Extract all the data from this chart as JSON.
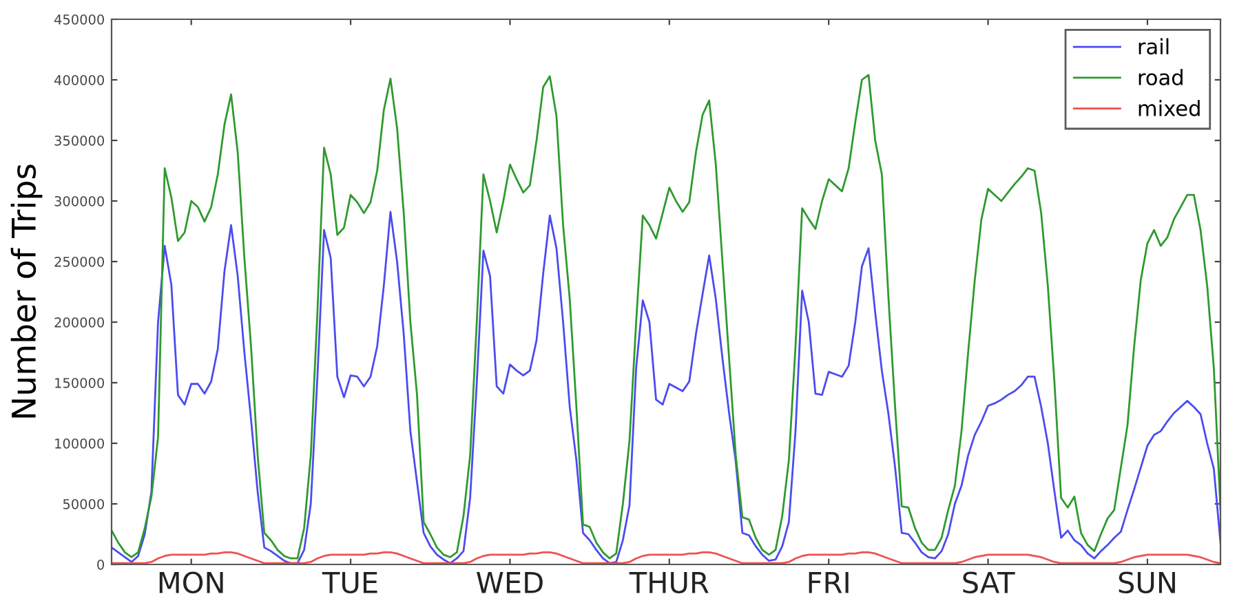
{
  "chart_data": {
    "type": "line",
    "ylabel": "Number of Trips",
    "ylim": [
      0,
      450000
    ],
    "categories": [
      null,
      null,
      null,
      null,
      null,
      null,
      null,
      null,
      null,
      null,
      null,
      null,
      "MON",
      null,
      null,
      null,
      null,
      null,
      null,
      null,
      null,
      null,
      null,
      null,
      null,
      null,
      null,
      null,
      null,
      null,
      null,
      null,
      null,
      null,
      null,
      null,
      "TUE",
      null,
      null,
      null,
      null,
      null,
      null,
      null,
      null,
      null,
      null,
      null,
      null,
      null,
      null,
      null,
      null,
      null,
      null,
      null,
      null,
      null,
      null,
      null,
      "WED",
      null,
      null,
      null,
      null,
      null,
      null,
      null,
      null,
      null,
      null,
      null,
      null,
      null,
      null,
      null,
      null,
      null,
      null,
      null,
      null,
      null,
      null,
      null,
      "THUR",
      null,
      null,
      null,
      null,
      null,
      null,
      null,
      null,
      null,
      null,
      null,
      null,
      null,
      null,
      null,
      null,
      null,
      null,
      null,
      null,
      null,
      null,
      null,
      "FRI",
      null,
      null,
      null,
      null,
      null,
      null,
      null,
      null,
      null,
      null,
      null,
      null,
      null,
      null,
      null,
      null,
      null,
      null,
      null,
      null,
      null,
      null,
      null,
      "SAT",
      null,
      null,
      null,
      null,
      null,
      null,
      null,
      null,
      null,
      null,
      null,
      null,
      null,
      null,
      null,
      null,
      null,
      null,
      null,
      null,
      null,
      null,
      null,
      "SUN",
      null,
      null,
      null,
      null,
      null,
      null,
      null,
      null,
      null,
      null,
      null
    ],
    "yticks": [
      0,
      50000,
      100000,
      150000,
      200000,
      250000,
      300000,
      350000,
      400000,
      450000
    ],
    "legend": "top right",
    "line_style": "solid",
    "series": [
      {
        "name": "rail",
        "color": "#4b4bf0",
        "values": [
          14000,
          10000,
          6000,
          2000,
          7000,
          25000,
          60000,
          200000,
          263000,
          231000,
          140000,
          132000,
          149000,
          149000,
          141000,
          151000,
          178000,
          242000,
          280000,
          238000,
          175000,
          120000,
          60000,
          14000,
          11000,
          7000,
          3000,
          1000,
          1000,
          12000,
          50000,
          155000,
          276000,
          253000,
          155000,
          138000,
          156000,
          155000,
          147000,
          155000,
          180000,
          230000,
          291000,
          250000,
          190000,
          110000,
          68000,
          26000,
          15000,
          8000,
          4000,
          1000,
          5000,
          11000,
          55000,
          150000,
          259000,
          238000,
          147000,
          141000,
          165000,
          160000,
          156000,
          160000,
          185000,
          240000,
          288000,
          261000,
          200000,
          130000,
          86000,
          26000,
          20000,
          12000,
          5000,
          1000,
          2000,
          20000,
          49000,
          162000,
          218000,
          200000,
          136000,
          132000,
          149000,
          146000,
          143000,
          151000,
          190000,
          223000,
          255000,
          219000,
          170000,
          125000,
          85000,
          26000,
          24000,
          15000,
          8000,
          3000,
          4000,
          15000,
          35000,
          110000,
          226000,
          200000,
          141000,
          140000,
          159000,
          157000,
          155000,
          164000,
          200000,
          246000,
          261000,
          208000,
          160000,
          124000,
          80000,
          26000,
          25000,
          18000,
          10000,
          6000,
          5000,
          11000,
          25000,
          50000,
          65000,
          90000,
          107000,
          118000,
          131000,
          133000,
          136000,
          140000,
          143000,
          148000,
          155000,
          155000,
          130000,
          100000,
          60000,
          22000,
          28000,
          20000,
          16000,
          9000,
          5000,
          11000,
          16000,
          22000,
          27000,
          45000,
          62000,
          80000,
          98000,
          107000,
          110000,
          118000,
          125000,
          130000,
          135000,
          130000,
          124000,
          100000,
          79000,
          18000
        ]
      },
      {
        "name": "road",
        "color": "#2e9a2e",
        "values": [
          28000,
          18000,
          10000,
          6000,
          10000,
          30000,
          56000,
          105000,
          327000,
          303000,
          267000,
          274000,
          300000,
          295000,
          283000,
          295000,
          322000,
          363000,
          388000,
          340000,
          253000,
          180000,
          90000,
          26000,
          20000,
          12000,
          7000,
          5000,
          5000,
          30000,
          90000,
          208000,
          344000,
          322000,
          272000,
          278000,
          305000,
          299000,
          290000,
          299000,
          325000,
          375000,
          401000,
          360000,
          290000,
          200000,
          140000,
          35000,
          25000,
          14000,
          8000,
          6000,
          10000,
          40000,
          90000,
          200000,
          322000,
          300000,
          274000,
          300000,
          330000,
          318000,
          307000,
          313000,
          350000,
          394000,
          403000,
          370000,
          280000,
          219000,
          130000,
          33000,
          31000,
          18000,
          10000,
          5000,
          9000,
          50000,
          102000,
          200000,
          288000,
          280000,
          269000,
          290000,
          311000,
          300000,
          291000,
          299000,
          340000,
          371000,
          383000,
          330000,
          250000,
          170000,
          90000,
          39000,
          37000,
          22000,
          12000,
          8000,
          12000,
          40000,
          86000,
          180000,
          294000,
          285000,
          277000,
          300000,
          318000,
          313000,
          308000,
          327000,
          365000,
          400000,
          404000,
          350000,
          322000,
          220000,
          130000,
          48000,
          47000,
          30000,
          18000,
          12000,
          12000,
          22000,
          45000,
          65000,
          110000,
          175000,
          235000,
          285000,
          310000,
          305000,
          300000,
          307000,
          314000,
          320000,
          327000,
          325000,
          290000,
          230000,
          150000,
          55000,
          47000,
          56000,
          26000,
          16000,
          11000,
          25000,
          38000,
          45000,
          80000,
          115000,
          180000,
          235000,
          265000,
          276000,
          263000,
          270000,
          285000,
          295000,
          305000,
          305000,
          276000,
          230000,
          162000,
          45000
        ]
      },
      {
        "name": "mixed",
        "color": "#f05050",
        "values": [
          1000,
          1000,
          1000,
          1000,
          1000,
          1000,
          2000,
          5000,
          7000,
          8000,
          8000,
          8000,
          8000,
          8000,
          8000,
          9000,
          9000,
          10000,
          10000,
          9000,
          7000,
          5000,
          3000,
          1000,
          1000,
          1000,
          1000,
          1000,
          1000,
          1000,
          2000,
          5000,
          7000,
          8000,
          8000,
          8000,
          8000,
          8000,
          8000,
          9000,
          9000,
          10000,
          10000,
          9000,
          7000,
          5000,
          3000,
          1000,
          1000,
          1000,
          1000,
          1000,
          1000,
          1000,
          2000,
          5000,
          7000,
          8000,
          8000,
          8000,
          8000,
          8000,
          8000,
          9000,
          9000,
          10000,
          10000,
          9000,
          7000,
          5000,
          3000,
          1000,
          1000,
          1000,
          1000,
          1000,
          1000,
          1000,
          2000,
          5000,
          7000,
          8000,
          8000,
          8000,
          8000,
          8000,
          8000,
          9000,
          9000,
          10000,
          10000,
          9000,
          7000,
          5000,
          3000,
          1000,
          1000,
          1000,
          1000,
          1000,
          1000,
          1000,
          2000,
          5000,
          7000,
          8000,
          8000,
          8000,
          8000,
          8000,
          8000,
          9000,
          9000,
          10000,
          10000,
          9000,
          7000,
          5000,
          3000,
          1000,
          1000,
          1000,
          1000,
          1000,
          1000,
          1000,
          1000,
          1000,
          2000,
          4000,
          6000,
          7000,
          8000,
          8000,
          8000,
          8000,
          8000,
          8000,
          8000,
          7000,
          6000,
          4000,
          2000,
          1000,
          1000,
          1000,
          1000,
          1000,
          1000,
          1000,
          1000,
          1000,
          2000,
          4000,
          6000,
          7000,
          8000,
          8000,
          8000,
          8000,
          8000,
          8000,
          8000,
          7000,
          6000,
          4000,
          2000,
          1000
        ]
      }
    ]
  }
}
